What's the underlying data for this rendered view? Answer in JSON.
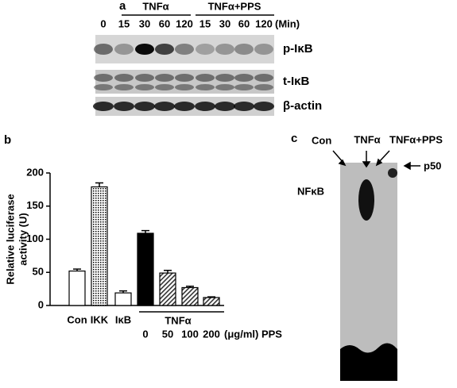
{
  "panel_a": {
    "letter": "a",
    "group1": "TNFα",
    "group2": "TNFα+PPS",
    "times": [
      "0",
      "15",
      "30",
      "60",
      "120",
      "15",
      "30",
      "60",
      "120"
    ],
    "time_unit": "(Min)",
    "rows": [
      "p-IκB",
      "t-IκB",
      "β-actin"
    ]
  },
  "chart_data": {
    "type": "bar",
    "letter": "b",
    "ylabel": [
      "Relative luciferase",
      "activity (U)"
    ],
    "categories": [
      "Con",
      "IKK",
      "IκB",
      "0",
      "50",
      "100",
      "200"
    ],
    "values": [
      52,
      179,
      19,
      109,
      49,
      27,
      12
    ],
    "errors": [
      3,
      6,
      3,
      4,
      4,
      2,
      1
    ],
    "fills": [
      "white",
      "dots",
      "white",
      "black",
      "hatch",
      "hatch",
      "hatch"
    ],
    "group_label": "TNFα",
    "unit_label": "(μg/ml) PPS",
    "ylim": [
      0,
      200
    ],
    "yticks": [
      0,
      50,
      100,
      150,
      200
    ]
  },
  "panel_c": {
    "letter": "c",
    "lanes": [
      "Con",
      "TNFα",
      "TNFα+PPS"
    ],
    "band1": "NFκB",
    "band2": "p50"
  }
}
